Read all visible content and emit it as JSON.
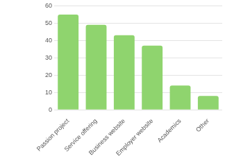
{
  "chart_data": {
    "type": "bar",
    "categories": [
      "Passion project",
      "Service offering",
      "Business website",
      "Employer website",
      "Academics",
      "Other"
    ],
    "values": [
      55,
      49,
      43,
      37,
      14,
      8
    ],
    "color": "#8fd46e",
    "ylim": [
      0,
      60
    ],
    "yticks": [
      0,
      10,
      20,
      30,
      40,
      50,
      60
    ],
    "grid": true
  }
}
